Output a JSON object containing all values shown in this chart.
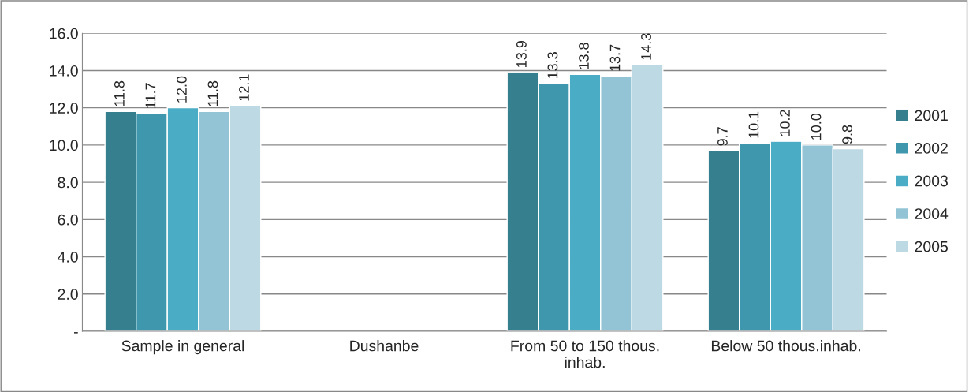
{
  "chart_data": {
    "type": "bar",
    "categories": [
      "Sample in general",
      "Dushanbe",
      "From 50 to 150 thous. inhab.",
      "Below 50 thous.inhab."
    ],
    "series": [
      {
        "name": "2001",
        "color": "#367f8f",
        "values": [
          11.8,
          null,
          13.9,
          9.7
        ],
        "value_labels": [
          "11.8",
          null,
          "13.9",
          "9.7"
        ]
      },
      {
        "name": "2002",
        "color": "#3f97ad",
        "values": [
          11.7,
          null,
          13.3,
          10.1
        ],
        "value_labels": [
          "11.7",
          null,
          "13.3",
          "10.1"
        ]
      },
      {
        "name": "2003",
        "color": "#4bacc6",
        "values": [
          12.0,
          null,
          13.8,
          10.2
        ],
        "value_labels": [
          "12.0",
          null,
          "13.8",
          "10.2"
        ]
      },
      {
        "name": "2004",
        "color": "#93c4d6",
        "values": [
          11.8,
          null,
          13.7,
          10.0
        ],
        "value_labels": [
          "11.8",
          null,
          "13.7",
          "10.0"
        ]
      },
      {
        "name": "2005",
        "color": "#bdd9e3",
        "values": [
          12.1,
          null,
          14.3,
          9.8
        ],
        "value_labels": [
          "12.1",
          null,
          "14.3",
          "9.8"
        ]
      }
    ],
    "ylim": [
      0,
      16
    ],
    "yticks": [
      {
        "value": 0,
        "label": "-"
      },
      {
        "value": 2,
        "label": "2.0"
      },
      {
        "value": 4,
        "label": "4.0"
      },
      {
        "value": 6,
        "label": "6.0"
      },
      {
        "value": 8,
        "label": "8.0"
      },
      {
        "value": 10,
        "label": "10.0"
      },
      {
        "value": 12,
        "label": "12.0"
      },
      {
        "value": 14,
        "label": "14.0"
      },
      {
        "value": 16,
        "label": "16.0"
      }
    ],
    "grid": "y",
    "legend": "right"
  }
}
